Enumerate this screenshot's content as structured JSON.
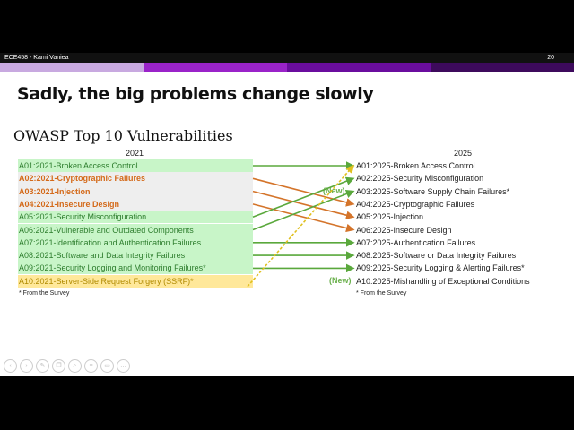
{
  "topbar": {
    "course": "ECE458 - Kami Vaniea",
    "page": "20"
  },
  "colors": {
    "bar": [
      "#c8a9e0",
      "#9a23c9",
      "#6a0d9e",
      "#3d0a5c"
    ],
    "green_bg": "#c8f5c8",
    "gray_bg": "#eeeeee",
    "yellow_bg": "#ffe89a",
    "green": "#5aa83c",
    "orange": "#d4742a",
    "gold": "#e0c020",
    "text_green": "#2d7d2d",
    "text_orange": "#d46a1a",
    "text_gold": "#b08a00"
  },
  "title": "Sadly, the big problems change slowly",
  "subtitle": "OWASP Top 10 Vulnerabilities",
  "left": {
    "header": "2021",
    "items": [
      {
        "label": "A01:2021-Broken Access Control",
        "style": "green"
      },
      {
        "label": "A02:2021-Cryptographic Failures",
        "style": "orange"
      },
      {
        "label": "A03:2021-Injection",
        "style": "orange"
      },
      {
        "label": "A04:2021-Insecure Design",
        "style": "orange"
      },
      {
        "label": "A05:2021-Security Misconfiguration",
        "style": "green"
      },
      {
        "label": "A06:2021-Vulnerable and Outdated Components",
        "style": "green"
      },
      {
        "label": "A07:2021-Identification and Authentication Failures",
        "style": "green"
      },
      {
        "label": "A08:2021-Software and Data Integrity Failures",
        "style": "green"
      },
      {
        "label": "A09:2021-Security Logging and Monitoring Failures*",
        "style": "green"
      },
      {
        "label": "A10:2021-Server-Side Request Forgery (SSRF)*",
        "style": "gold"
      }
    ],
    "footnote": "* From the Survey"
  },
  "right": {
    "header": "2025",
    "items": [
      {
        "label": "A01:2025-Broken Access Control"
      },
      {
        "label": "A02:2025-Security Misconfiguration"
      },
      {
        "label": "A03:2025-Software Supply Chain Failures*"
      },
      {
        "label": "A04:2025-Cryptographic Failures"
      },
      {
        "label": "A05:2025-Injection"
      },
      {
        "label": "A06:2025-Insecure Design"
      },
      {
        "label": "A07:2025-Authentication Failures"
      },
      {
        "label": "A08:2025-Software or Data Integrity Failures"
      },
      {
        "label": "A09:2025-Security Logging & Alerting Failures*"
      },
      {
        "label": "A10:2025-Mishandling of Exceptional Conditions"
      }
    ],
    "footnote": "* From the Survey",
    "new_label_a03": "(New)",
    "new_label_a10": "(New)"
  },
  "mapping": [
    {
      "from": 0,
      "to": 0,
      "color": "green"
    },
    {
      "from": 1,
      "to": 3,
      "color": "orange"
    },
    {
      "from": 2,
      "to": 4,
      "color": "orange"
    },
    {
      "from": 3,
      "to": 5,
      "color": "orange"
    },
    {
      "from": 4,
      "to": 1,
      "color": "green"
    },
    {
      "from": 5,
      "to": 2,
      "color": "green"
    },
    {
      "from": 6,
      "to": 6,
      "color": "green"
    },
    {
      "from": 7,
      "to": 7,
      "color": "green"
    },
    {
      "from": 8,
      "to": 8,
      "color": "green"
    },
    {
      "from": 9,
      "to": 0,
      "color": "gold",
      "dashed": true
    }
  ],
  "controls": [
    "prev-icon",
    "next-icon",
    "pen-icon",
    "copy-icon",
    "zoom-icon",
    "menu-icon",
    "video-icon",
    "more-icon"
  ]
}
